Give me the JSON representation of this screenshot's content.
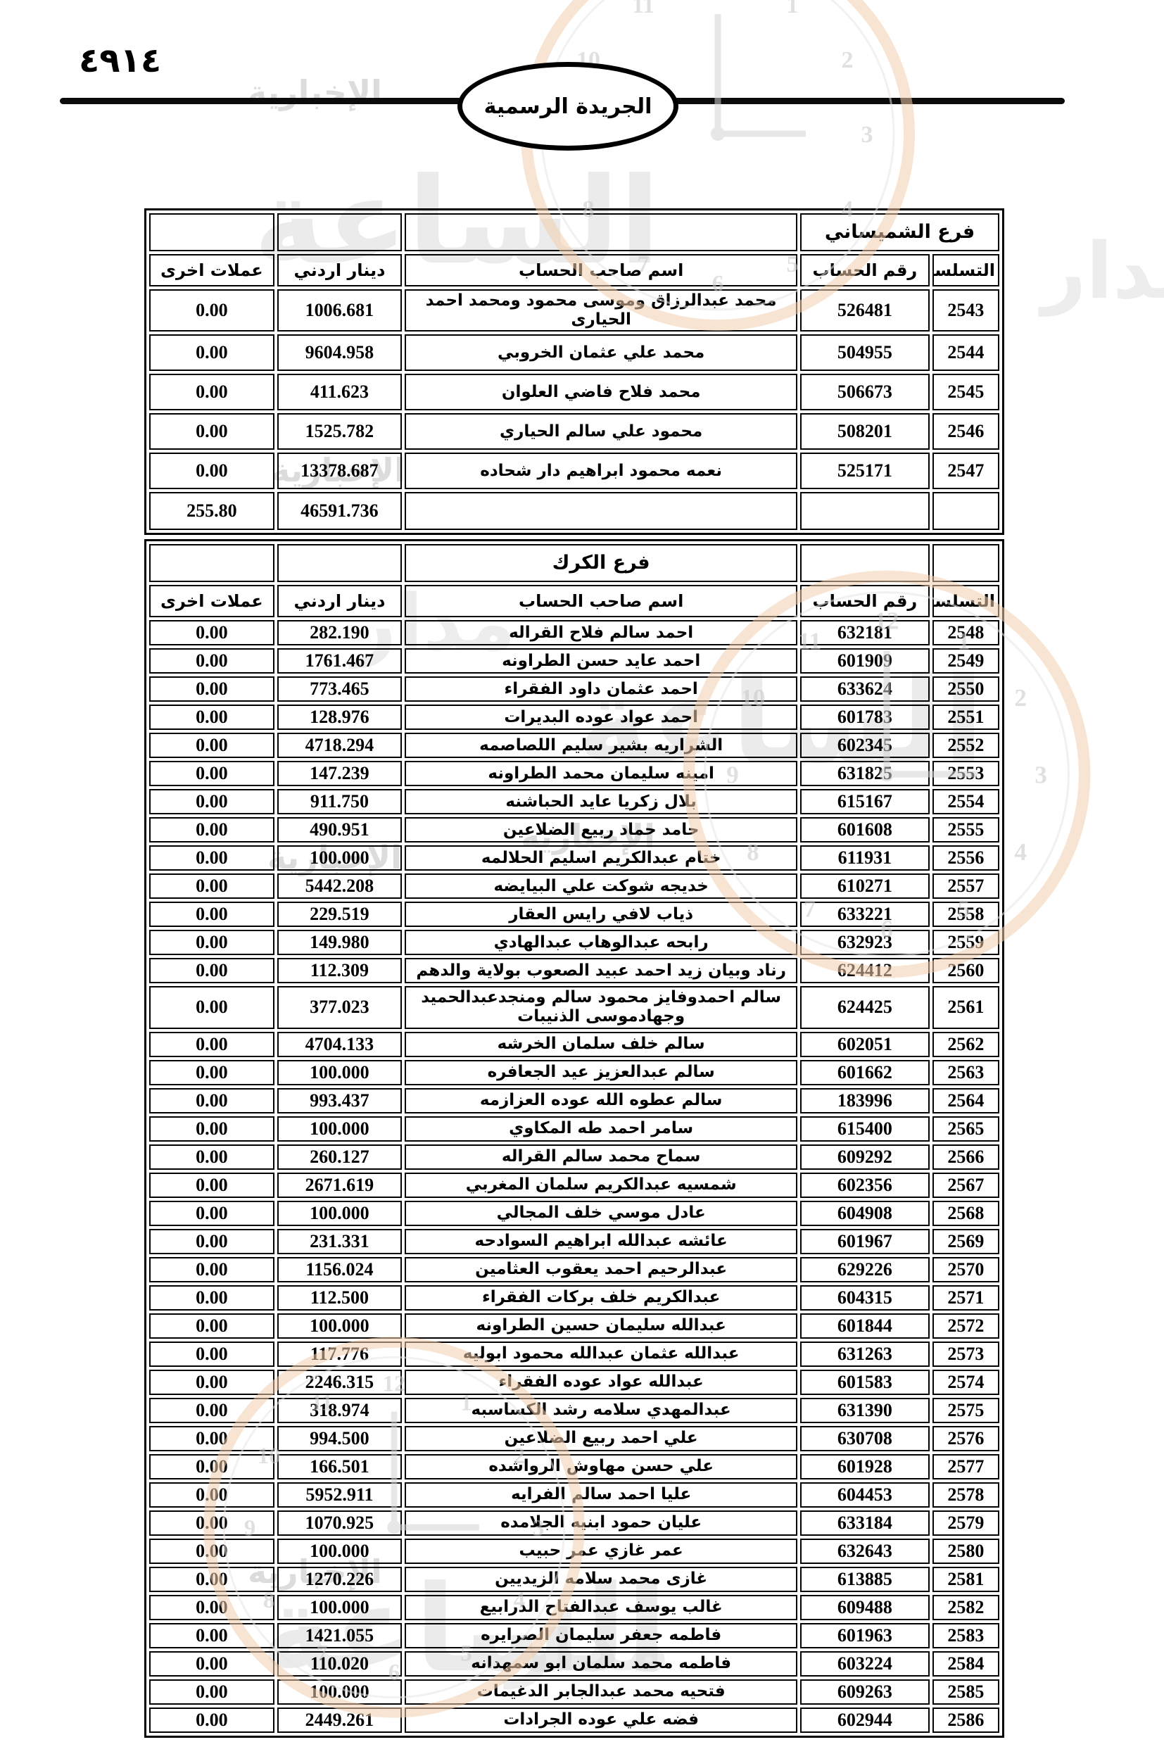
{
  "page": {
    "number_arabic": "٤٩١٤",
    "gazette_label": "الجريدة الرسمية"
  },
  "table_headers": {
    "serial": "التسلسل",
    "account_number": "رقم الحساب",
    "account_holder": "اسم صاحب الحساب",
    "jordanian_dinar": "دينار اردني",
    "other_currencies": "عملات اخرى"
  },
  "sections": [
    {
      "branch": "فرع الشميساني",
      "rows": [
        {
          "serial": "2543",
          "account": "526481",
          "name": "محمد عبدالرزاق وموسى محمود ومحمد احمد الحيارى",
          "dinar": "1006.681",
          "other": "0.00"
        },
        {
          "serial": "2544",
          "account": "504955",
          "name": "محمد علي عثمان الخروبي",
          "dinar": "9604.958",
          "other": "0.00"
        },
        {
          "serial": "2545",
          "account": "506673",
          "name": "محمد فلاح فاضي العلوان",
          "dinar": "411.623",
          "other": "0.00"
        },
        {
          "serial": "2546",
          "account": "508201",
          "name": "محمود علي سالم الحياري",
          "dinar": "1525.782",
          "other": "0.00"
        },
        {
          "serial": "2547",
          "account": "525171",
          "name": "نعمه محمود ابراهيم دار شحاده",
          "dinar": "13378.687",
          "other": "0.00"
        }
      ],
      "totals": {
        "jordanian_dinar": "46591.736",
        "other_currencies": "255.80"
      }
    },
    {
      "branch": "فرع الكرك",
      "rows": [
        {
          "serial": "2548",
          "account": "632181",
          "name": "احمد سالم فلاح القراله",
          "dinar": "282.190",
          "other": "0.00"
        },
        {
          "serial": "2549",
          "account": "601909",
          "name": "احمد عايد حسن الطراونه",
          "dinar": "1761.467",
          "other": "0.00"
        },
        {
          "serial": "2550",
          "account": "633624",
          "name": "احمد عثمان داود الفقراء",
          "dinar": "773.465",
          "other": "0.00"
        },
        {
          "serial": "2551",
          "account": "601783",
          "name": "احمد عواد عوده البديرات",
          "dinar": "128.976",
          "other": "0.00"
        },
        {
          "serial": "2552",
          "account": "602345",
          "name": "الشراريه بشير سليم اللصاصمه",
          "dinar": "4718.294",
          "other": "0.00"
        },
        {
          "serial": "2553",
          "account": "631825",
          "name": "امينه سليمان محمد الطراونه",
          "dinar": "147.239",
          "other": "0.00"
        },
        {
          "serial": "2554",
          "account": "615167",
          "name": "بلال زكريا عايد الحباشنه",
          "dinar": "911.750",
          "other": "0.00"
        },
        {
          "serial": "2555",
          "account": "601608",
          "name": "حامد حماد ربيع الضلاعين",
          "dinar": "490.951",
          "other": "0.00"
        },
        {
          "serial": "2556",
          "account": "611931",
          "name": "ختام عبدالكريم اسليم الحلالمه",
          "dinar": "100.000",
          "other": "0.00"
        },
        {
          "serial": "2557",
          "account": "610271",
          "name": "خديجه شوكت علي البيايضه",
          "dinar": "5442.208",
          "other": "0.00"
        },
        {
          "serial": "2558",
          "account": "633221",
          "name": "ذياب لافي رايس العقار",
          "dinar": "229.519",
          "other": "0.00"
        },
        {
          "serial": "2559",
          "account": "632923",
          "name": "رابحه عبدالوهاب عبدالهادي",
          "dinar": "149.980",
          "other": "0.00"
        },
        {
          "serial": "2560",
          "account": "624412",
          "name": "رناد وبيان زيد احمد عبيد الصعوب بولاية والدهم",
          "dinar": "112.309",
          "other": "0.00"
        },
        {
          "serial": "2561",
          "account": "624425",
          "name": "سالم احمدوفايز محمود سالم ومنجدعبدالحميد وجهادموسى الذنيبات",
          "dinar": "377.023",
          "other": "0.00"
        },
        {
          "serial": "2562",
          "account": "602051",
          "name": "سالم خلف سلمان الخرشه",
          "dinar": "4704.133",
          "other": "0.00"
        },
        {
          "serial": "2563",
          "account": "601662",
          "name": "سالم عبدالعزيز عيد الجعافره",
          "dinar": "100.000",
          "other": "0.00"
        },
        {
          "serial": "2564",
          "account": "183996",
          "name": "سالم عطوه الله عوده العزازمه",
          "dinar": "993.437",
          "other": "0.00"
        },
        {
          "serial": "2565",
          "account": "615400",
          "name": "سامر احمد طه المكاوي",
          "dinar": "100.000",
          "other": "0.00"
        },
        {
          "serial": "2566",
          "account": "609292",
          "name": "سماح محمد سالم القراله",
          "dinar": "260.127",
          "other": "0.00"
        },
        {
          "serial": "2567",
          "account": "602356",
          "name": "شمسيه عبدالكريم سلمان المغربي",
          "dinar": "2671.619",
          "other": "0.00"
        },
        {
          "serial": "2568",
          "account": "604908",
          "name": "عادل موسي خلف المجالي",
          "dinar": "100.000",
          "other": "0.00"
        },
        {
          "serial": "2569",
          "account": "601967",
          "name": "عائشه عبدالله ابراهيم السوادحه",
          "dinar": "231.331",
          "other": "0.00"
        },
        {
          "serial": "2570",
          "account": "629226",
          "name": "عبدالرحيم احمد يعقوب العثامين",
          "dinar": "1156.024",
          "other": "0.00"
        },
        {
          "serial": "2571",
          "account": "604315",
          "name": "عبدالكريم خلف بركات الفقراء",
          "dinar": "112.500",
          "other": "0.00"
        },
        {
          "serial": "2572",
          "account": "601844",
          "name": "عبدالله سليمان حسين الطراونه",
          "dinar": "100.000",
          "other": "0.00"
        },
        {
          "serial": "2573",
          "account": "631263",
          "name": "عبدالله عثمان عبدالله محمود ابوليه",
          "dinar": "117.776",
          "other": "0.00"
        },
        {
          "serial": "2574",
          "account": "601583",
          "name": "عبدالله عواد عوده الفقراء",
          "dinar": "2246.315",
          "other": "0.00"
        },
        {
          "serial": "2575",
          "account": "631390",
          "name": "عبدالمهدي سلامه رشد الكساسبه",
          "dinar": "318.974",
          "other": "0.00"
        },
        {
          "serial": "2576",
          "account": "630708",
          "name": "علي احمد ربيع الضلاعين",
          "dinar": "994.500",
          "other": "0.00"
        },
        {
          "serial": "2577",
          "account": "601928",
          "name": "علي حسن مهاوش الرواشده",
          "dinar": "166.501",
          "other": "0.00"
        },
        {
          "serial": "2578",
          "account": "604453",
          "name": "عليا احمد سالم الفرايه",
          "dinar": "5952.911",
          "other": "0.00"
        },
        {
          "serial": "2579",
          "account": "633184",
          "name": "عليان حمود ابنيه الجلامده",
          "dinar": "1070.925",
          "other": "0.00"
        },
        {
          "serial": "2580",
          "account": "632643",
          "name": "عمر غازي عمر حبيب",
          "dinar": "100.000",
          "other": "0.00"
        },
        {
          "serial": "2581",
          "account": "613885",
          "name": "غازى محمد سلامه الزيديين",
          "dinar": "1270.226",
          "other": "0.00"
        },
        {
          "serial": "2582",
          "account": "609488",
          "name": "غالب يوسف عبدالفتاح الدرابيع",
          "dinar": "100.000",
          "other": "0.00"
        },
        {
          "serial": "2583",
          "account": "601963",
          "name": "فاطمه جعفر سليمان الصرايره",
          "dinar": "1421.055",
          "other": "0.00"
        },
        {
          "serial": "2584",
          "account": "603224",
          "name": "فاطمه محمد سلمان ابو سمهدانه",
          "dinar": "110.020",
          "other": "0.00"
        },
        {
          "serial": "2585",
          "account": "609263",
          "name": "فتحيه محمد عبدالجابر الدغيمات",
          "dinar": "100.000",
          "other": "0.00"
        },
        {
          "serial": "2586",
          "account": "602944",
          "name": "فضه علي عوده الجرادات",
          "dinar": "2449.261",
          "other": "0.00"
        }
      ]
    }
  ],
  "watermark": {
    "agency_word1": "مدار",
    "agency_word2": "الساعة",
    "tagline": "الإخبارية",
    "clock_numerals": [
      "1",
      "2",
      "3",
      "4",
      "5",
      "6",
      "7",
      "8",
      "9",
      "10",
      "11",
      "12"
    ]
  }
}
